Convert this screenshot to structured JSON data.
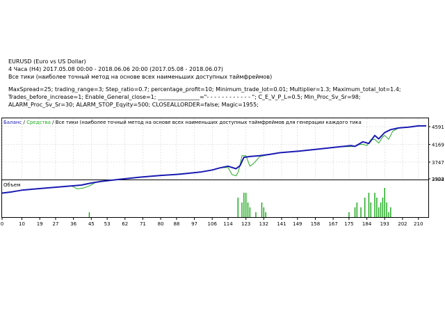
{
  "header": {
    "symbol": "EURUSD (Euro vs US Dollar)",
    "period": "4 Часа (H4) 2017.05.08 00:00 - 2018.06.06 20:00 (2017.05.08 - 2018.06.07)",
    "model": "Все тики (наиболее точный метод на основе всех наименьших доступных таймфреймов)",
    "params": [
      "MaxSpread=25; trading_range=3; Step_ratio=0.7; percentage_profit=10; Minimum_trade_lot=0.01; Multiplier=1.3; Maximum_total_lot=1.4;",
      "Trades_before_increase=1; Enable_General_close=1; _______________=\"- - - - - - - - - - - - \"; C_E_V_P_L=0.5; Min_Proc_Sv_Sr=98;",
      "ALARM_Proc_Sv_Sr=30; ALARM_STOP_Eqyity=500; CLOSEALLORDER=false; Magic=1955;"
    ]
  },
  "legend": {
    "balance": "Баланс",
    "separator": " / ",
    "equity": "Средства",
    "sep2": " / ",
    "model": "Все тики (наиболее точный метод на основе всех наименьших доступных таймфреймов для генерации каждого тика"
  },
  "volume_label": "Объем",
  "colors": {
    "balance": "#1a1ab3",
    "equity": "#22aa22",
    "volume": "#22aa22",
    "border": "#000000",
    "grid": "#c8c8c8"
  },
  "chart_data": {
    "type": "line",
    "y_ticks": [
      "4591",
      "4169",
      "3747",
      "3324",
      "2902"
    ],
    "y_tick_values": [
      4591,
      4169,
      3747,
      3324,
      2902
    ],
    "ylim": [
      2902,
      4591
    ],
    "x_ticks": [
      "0",
      "10",
      "19",
      "27",
      "36",
      "45",
      "53",
      "62",
      "71",
      "80",
      "88",
      "97",
      "106",
      "114",
      "123",
      "132",
      "141",
      "149",
      "158",
      "167",
      "175",
      "184",
      "193",
      "202",
      "210"
    ],
    "xlim": [
      0,
      215
    ],
    "grid": true,
    "series": [
      {
        "name": "Баланс",
        "x": [
          0,
          5,
          10,
          20,
          30,
          40,
          45,
          50,
          60,
          70,
          80,
          90,
          100,
          106,
          110,
          114,
          118,
          120,
          122,
          125,
          130,
          135,
          140,
          150,
          160,
          170,
          176,
          178,
          182,
          185,
          188,
          190,
          193,
          196,
          200,
          205,
          210,
          214
        ],
        "y": [
          3010,
          3040,
          3080,
          3120,
          3160,
          3200,
          3250,
          3290,
          3340,
          3390,
          3430,
          3460,
          3510,
          3560,
          3610,
          3650,
          3590,
          3660,
          3860,
          3880,
          3900,
          3930,
          3970,
          4010,
          4060,
          4110,
          4140,
          4120,
          4230,
          4190,
          4380,
          4300,
          4450,
          4520,
          4560,
          4580,
          4610,
          4610
        ]
      },
      {
        "name": "Средства",
        "x": [
          0,
          10,
          20,
          30,
          35,
          38,
          41,
          44,
          47,
          60,
          80,
          100,
          106,
          110,
          114,
          116,
          118,
          119,
          120,
          121,
          123,
          125,
          127,
          130,
          140,
          150,
          160,
          170,
          178,
          180,
          182,
          184,
          186,
          188,
          190,
          192,
          193,
          195,
          197,
          200,
          210,
          214
        ],
        "y": [
          3010,
          3080,
          3120,
          3160,
          3180,
          3110,
          3130,
          3180,
          3260,
          3340,
          3430,
          3510,
          3560,
          3610,
          3620,
          3450,
          3420,
          3500,
          3660,
          3900,
          3900,
          3650,
          3720,
          3880,
          3970,
          4010,
          4060,
          4110,
          4120,
          4160,
          4170,
          4140,
          4280,
          4290,
          4200,
          4350,
          4380,
          4290,
          4480,
          4560,
          4610,
          4610
        ]
      }
    ],
    "volume": {
      "x": [
        44,
        119,
        121,
        122,
        123,
        124,
        125,
        128,
        131,
        132,
        133,
        175,
        178,
        179,
        181,
        183,
        185,
        186,
        188,
        189,
        190,
        191,
        192,
        193,
        194,
        195,
        196
      ],
      "values": [
        1,
        4,
        3,
        5,
        5,
        3,
        2,
        1,
        3,
        2,
        1,
        1,
        2,
        3,
        2,
        4,
        5,
        3,
        5,
        4,
        2,
        3,
        4,
        6,
        3,
        1,
        2
      ],
      "max": 6
    }
  }
}
